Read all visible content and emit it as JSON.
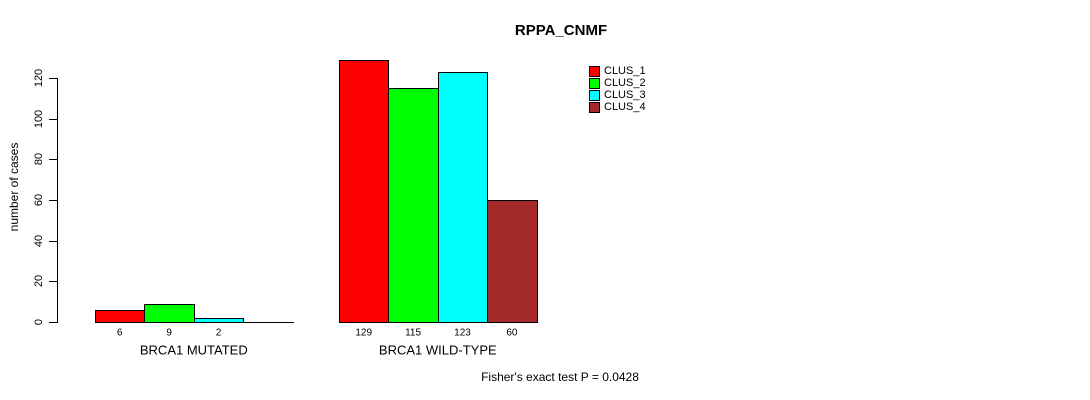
{
  "chart_data": {
    "type": "bar",
    "title": "RPPA_CNMF",
    "xlabel": "",
    "ylabel": "number of cases",
    "ylim": [
      0,
      120
    ],
    "yticks": [
      0,
      20,
      40,
      60,
      80,
      100,
      120
    ],
    "grid": false,
    "legend_position": "top-right",
    "categories": [
      "BRCA1 MUTATED",
      "BRCA1 WILD-TYPE"
    ],
    "series": [
      {
        "name": "CLUS_1",
        "color": "#FF0000",
        "values": [
          6,
          129
        ]
      },
      {
        "name": "CLUS_2",
        "color": "#00FF00",
        "values": [
          9,
          115
        ]
      },
      {
        "name": "CLUS_3",
        "color": "#00FFFF",
        "values": [
          2,
          123
        ]
      },
      {
        "name": "CLUS_4",
        "color": "#A52A2A",
        "values": [
          0,
          60
        ]
      }
    ],
    "bar_value_labels": [
      [
        "6",
        "9",
        "2",
        ""
      ],
      [
        "129",
        "115",
        "123",
        "60"
      ]
    ],
    "footnote": "Fisher's exact test P = 0.0428",
    "colors": {
      "axis": "#000000",
      "text": "#000000",
      "background": "#FFFFFF"
    }
  }
}
